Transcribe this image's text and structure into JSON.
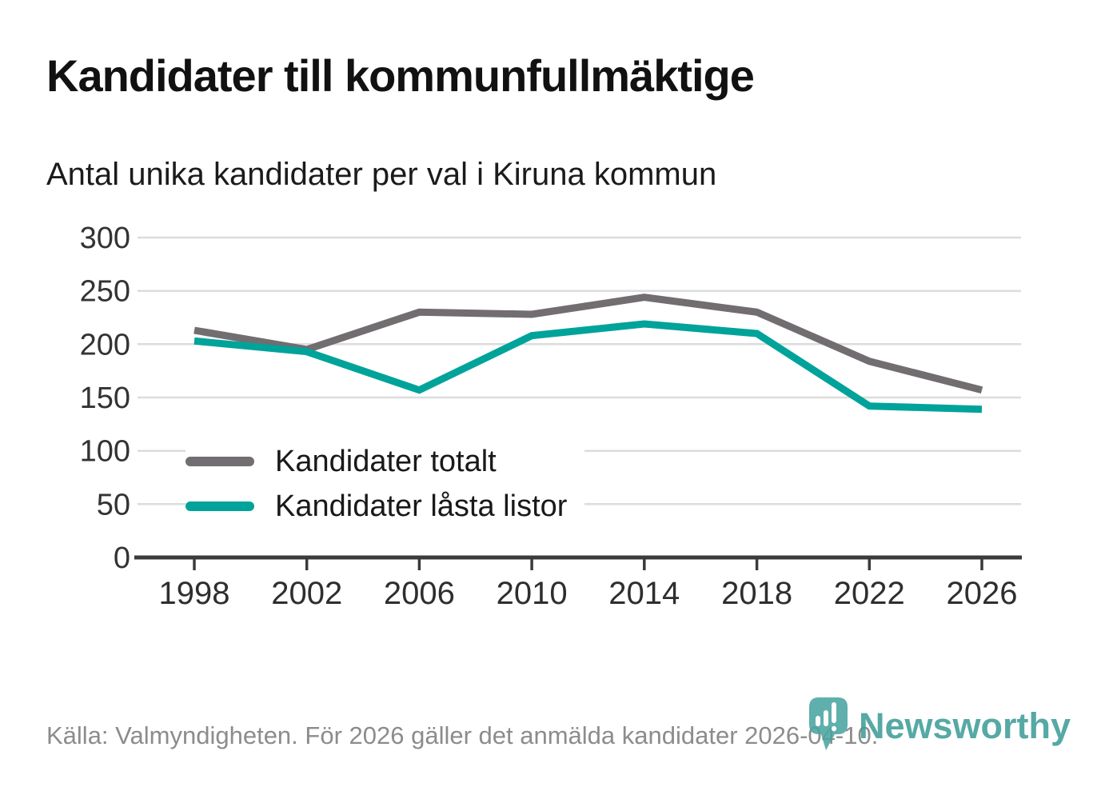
{
  "header": {
    "title": "Kandidater till kommunfullmäktige",
    "subtitle": "Antal unika kandidater per val i Kiruna kommun"
  },
  "chart_data": {
    "type": "line",
    "title": "Kandidater till kommunfullmäktige",
    "subtitle": "Antal unika kandidater per val i Kiruna kommun",
    "x": [
      "1998",
      "2002",
      "2006",
      "2010",
      "2014",
      "2018",
      "2022",
      "2026"
    ],
    "series": [
      {
        "name": "Kandidater totalt",
        "color": "#716d71",
        "values": [
          213,
          195,
          230,
          228,
          244,
          230,
          184,
          157
        ]
      },
      {
        "name": "Kandidater låsta listor",
        "color": "#00a39a",
        "values": [
          203,
          193,
          157,
          208,
          219,
          210,
          142,
          139
        ]
      }
    ],
    "ylim": [
      0,
      300
    ],
    "yticks": [
      0,
      50,
      100,
      150,
      200,
      250,
      300
    ],
    "grid": "horizontal",
    "legend_position": "inside-left-middle"
  },
  "footer": {
    "source": "Källa: Valmyndigheten. För 2026 gäller det anmälda kandidater 2026-04-10."
  },
  "logo": {
    "brand": "Newsworthy",
    "icon": "newsworthy-pin-barchart-icon",
    "color": "#3f9e99",
    "icon_color": "#4aa5a1"
  },
  "colors": {
    "axis": "#3b3b3b",
    "gridline": "#dcdcdc",
    "y_tick_label": "#333333",
    "x_tick_label": "#2e2e2e",
    "title": "#111111",
    "source": "#8c8c8c"
  }
}
